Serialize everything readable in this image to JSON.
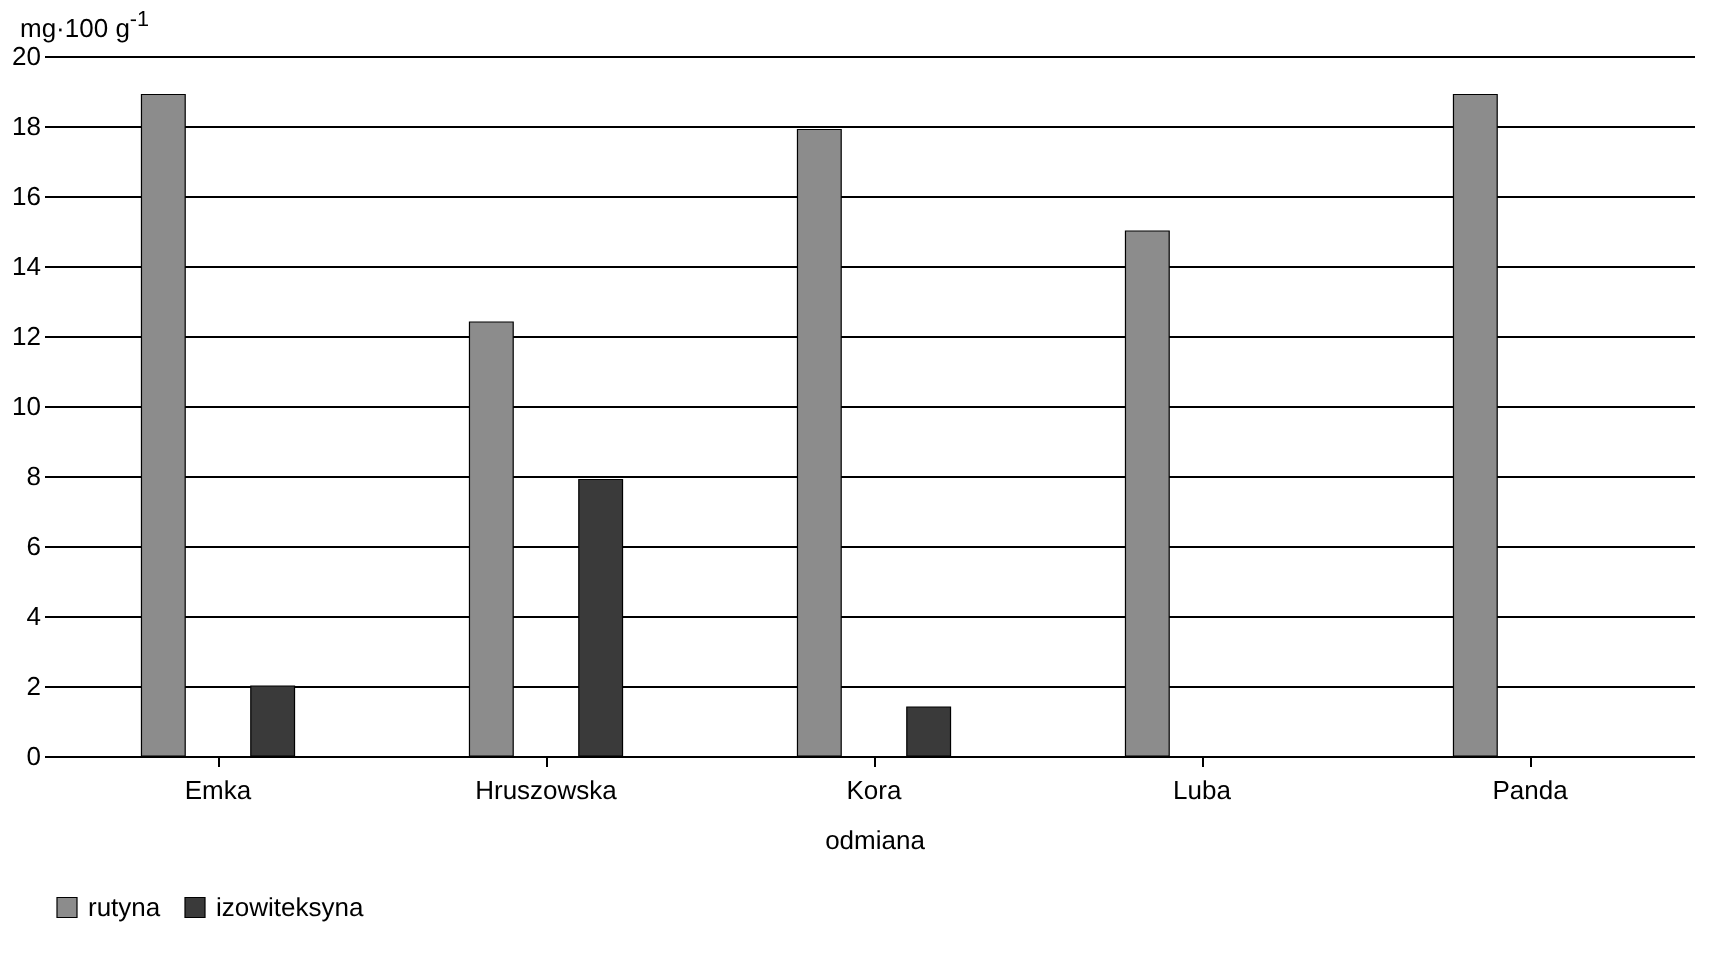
{
  "chart_data": {
    "type": "bar",
    "ylabel": "mg·100 g$^{-1}$",
    "xlabel": "odmiana",
    "categories": [
      "Emka",
      "Hruszowska",
      "Kora",
      "Luba",
      "Panda"
    ],
    "series": [
      {
        "name": "rutyna",
        "color": "#8c8c8c",
        "values": [
          18.9,
          12.4,
          17.9,
          15.0,
          18.9
        ]
      },
      {
        "name": "izowiteksyna",
        "color": "#3a3a3a",
        "values": [
          2.0,
          7.9,
          1.4,
          null,
          null
        ]
      }
    ],
    "ylim": [
      0,
      20
    ],
    "yticks": [
      0,
      2,
      4,
      6,
      8,
      10,
      12,
      14,
      16,
      18,
      20
    ],
    "grid": "y",
    "legend": "bottom"
  }
}
